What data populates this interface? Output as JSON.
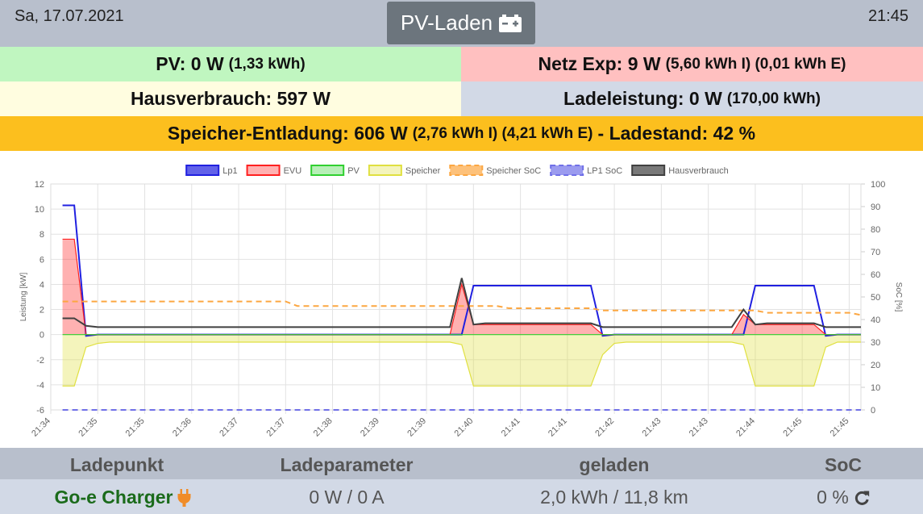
{
  "header": {
    "date": "Sa, 17.07.2021",
    "mode": "PV-Laden",
    "time": "21:45"
  },
  "status": {
    "pv": {
      "main": "PV: 0 W",
      "detail": "(1,33 kWh)"
    },
    "netz": {
      "main": "Netz Exp: 9 W",
      "detail": "(5,60 kWh I) (0,01 kWh E)"
    },
    "haus": {
      "main": "Hausverbrauch: 597 W"
    },
    "lade": {
      "main": "Ladeleistung: 0 W",
      "detail": "(170,00 kWh)"
    },
    "speicher": {
      "main": "Speicher-Entladung: 606 W",
      "detail": "(2,76 kWh I) (4,21 kWh E)",
      "tail": "- Ladestand: 42 %"
    }
  },
  "chart_data": {
    "type": "line",
    "ylabel": "Leistung [kW]",
    "y2label": "SoC [%]",
    "ylim": [
      -6,
      12
    ],
    "yticks": [
      -6,
      -4,
      -2,
      0,
      2,
      4,
      6,
      8,
      10,
      12
    ],
    "y2lim": [
      0,
      100
    ],
    "y2ticks": [
      0,
      10,
      20,
      30,
      40,
      50,
      60,
      70,
      80,
      90,
      100
    ],
    "grid": true,
    "categories": [
      "21:34",
      null,
      null,
      null,
      "21:35",
      null,
      null,
      null,
      "21:35",
      null,
      null,
      null,
      "21:36",
      null,
      null,
      null,
      "21:37",
      null,
      null,
      null,
      "21:37",
      null,
      null,
      null,
      "21:38",
      null,
      null,
      null,
      "21:39",
      null,
      null,
      null,
      "21:39",
      null,
      null,
      null,
      "21:40",
      null,
      null,
      null,
      "21:41",
      null,
      null,
      null,
      "21:41",
      null,
      null,
      null,
      "21:42",
      null,
      null,
      null,
      "21:43",
      null,
      null,
      null,
      "21:43",
      null,
      null,
      null,
      "21:44",
      null,
      null,
      null,
      "21:45",
      null,
      null,
      null,
      "21:45",
      null
    ],
    "series": [
      {
        "name": "Lp1",
        "color": "#2020e0",
        "area": false,
        "dashed": false,
        "values": [
          null,
          10.3,
          10.3,
          -0.1,
          0,
          0,
          0,
          0,
          0,
          0,
          0,
          0,
          0,
          0,
          0,
          0,
          0,
          0,
          0,
          0,
          0,
          0,
          0,
          0,
          0,
          0,
          0,
          0,
          0,
          0,
          0,
          0,
          0,
          0,
          0,
          0,
          3.9,
          3.9,
          3.9,
          3.9,
          3.9,
          3.9,
          3.9,
          3.9,
          3.9,
          3.9,
          3.9,
          -0.1,
          0,
          0,
          0,
          0,
          0,
          0,
          0,
          0,
          0,
          0,
          0,
          0,
          3.9,
          3.9,
          3.9,
          3.9,
          3.9,
          3.9,
          -0.1,
          0,
          0,
          0
        ]
      },
      {
        "name": "EVU",
        "color": "#ff2020",
        "area": true,
        "dashed": false,
        "values": [
          null,
          7.6,
          7.6,
          0,
          0,
          0,
          0,
          0,
          0,
          0,
          0,
          0,
          0,
          0,
          0,
          0,
          0,
          0,
          0,
          0,
          0,
          0,
          0,
          0,
          0,
          0,
          0,
          0,
          0,
          0,
          0,
          0,
          0,
          0,
          0,
          4,
          0.8,
          0.8,
          0.8,
          0.8,
          0.8,
          0.8,
          0.8,
          0.8,
          0.8,
          0.8,
          0.8,
          0,
          0,
          0,
          0,
          0,
          0,
          0,
          0,
          0,
          0,
          0,
          0,
          1.6,
          0.8,
          0.8,
          0.8,
          0.8,
          0.8,
          0.8,
          0,
          0,
          0,
          0
        ]
      },
      {
        "name": "PV",
        "color": "#30d030",
        "area": true,
        "dashed": false,
        "values": [
          null,
          0,
          0,
          0,
          0,
          0,
          0,
          0,
          0,
          0,
          0,
          0,
          0,
          0,
          0,
          0,
          0,
          0,
          0,
          0,
          0,
          0,
          0,
          0,
          0,
          0,
          0,
          0,
          0,
          0,
          0,
          0,
          0,
          0,
          0,
          0,
          0,
          0,
          0,
          0,
          0,
          0,
          0,
          0,
          0,
          0,
          0,
          0,
          0,
          0,
          0,
          0,
          0,
          0,
          0,
          0,
          0,
          0,
          0,
          0,
          0,
          0,
          0,
          0,
          0,
          0,
          0,
          0,
          0,
          0
        ]
      },
      {
        "name": "Speicher",
        "color": "#e0e040",
        "area": true,
        "dashed": false,
        "values": [
          null,
          -4.1,
          -4.1,
          -1,
          -0.7,
          -0.6,
          -0.6,
          -0.6,
          -0.6,
          -0.6,
          -0.6,
          -0.6,
          -0.6,
          -0.6,
          -0.6,
          -0.6,
          -0.6,
          -0.6,
          -0.6,
          -0.6,
          -0.6,
          -0.6,
          -0.6,
          -0.6,
          -0.6,
          -0.6,
          -0.6,
          -0.6,
          -0.6,
          -0.6,
          -0.6,
          -0.6,
          -0.6,
          -0.6,
          -0.6,
          -0.8,
          -4.1,
          -4.1,
          -4.1,
          -4.1,
          -4.1,
          -4.1,
          -4.1,
          -4.1,
          -4.1,
          -4.1,
          -4.1,
          -1.6,
          -0.7,
          -0.6,
          -0.6,
          -0.6,
          -0.6,
          -0.6,
          -0.6,
          -0.6,
          -0.6,
          -0.6,
          -0.6,
          -0.8,
          -4.1,
          -4.1,
          -4.1,
          -4.1,
          -4.1,
          -4.1,
          -1,
          -0.6,
          -0.6,
          -0.6
        ]
      },
      {
        "name": "Speicher SoC",
        "color": "#fca742",
        "area": false,
        "dashed": true,
        "axis": "y2",
        "values": [
          null,
          48,
          48,
          48,
          48,
          48,
          48,
          48,
          48,
          48,
          48,
          48,
          48,
          48,
          48,
          48,
          48,
          48,
          48,
          48,
          48,
          46,
          46,
          46,
          46,
          46,
          46,
          46,
          46,
          46,
          46,
          46,
          46,
          46,
          46,
          46,
          46,
          46,
          46,
          45,
          45,
          45,
          45,
          45,
          45,
          45,
          45,
          44,
          44,
          44,
          44,
          44,
          44,
          44,
          44,
          44,
          44,
          44,
          44,
          44,
          44,
          43,
          43,
          43,
          43,
          43,
          43,
          43,
          43,
          42
        ]
      },
      {
        "name": "LP1 SoC",
        "color": "#7070e8",
        "area": false,
        "dashed": true,
        "axis": "y2",
        "values": [
          null,
          0,
          0,
          0,
          0,
          0,
          0,
          0,
          0,
          0,
          0,
          0,
          0,
          0,
          0,
          0,
          0,
          0,
          0,
          0,
          0,
          0,
          0,
          0,
          0,
          0,
          0,
          0,
          0,
          0,
          0,
          0,
          0,
          0,
          0,
          0,
          0,
          0,
          0,
          0,
          0,
          0,
          0,
          0,
          0,
          0,
          0,
          0,
          0,
          0,
          0,
          0,
          0,
          0,
          0,
          0,
          0,
          0,
          0,
          0,
          0,
          0,
          0,
          0,
          0,
          0,
          0,
          0,
          0,
          0
        ]
      },
      {
        "name": "Hausverbrauch",
        "color": "#404040",
        "area": false,
        "dashed": false,
        "values": [
          null,
          1.3,
          1.3,
          0.7,
          0.6,
          0.6,
          0.6,
          0.6,
          0.6,
          0.6,
          0.6,
          0.6,
          0.6,
          0.6,
          0.6,
          0.6,
          0.6,
          0.6,
          0.6,
          0.6,
          0.6,
          0.6,
          0.6,
          0.6,
          0.6,
          0.6,
          0.6,
          0.6,
          0.6,
          0.6,
          0.6,
          0.6,
          0.6,
          0.6,
          0.6,
          4.5,
          0.8,
          0.9,
          0.9,
          0.9,
          0.9,
          0.9,
          0.9,
          0.9,
          0.9,
          0.9,
          0.9,
          0.6,
          0.6,
          0.6,
          0.6,
          0.6,
          0.6,
          0.6,
          0.6,
          0.6,
          0.6,
          0.6,
          0.6,
          2,
          0.8,
          0.9,
          0.9,
          0.9,
          0.9,
          0.9,
          0.6,
          0.6,
          0.6,
          0.6
        ]
      }
    ]
  },
  "table": {
    "headers": [
      "Ladepunkt",
      "Ladeparameter",
      "geladen",
      "SoC"
    ],
    "rows": [
      [
        "Go-e Charger",
        "0 W / 0 A",
        "2,0 kWh / 11,8 km",
        "0 %"
      ]
    ]
  }
}
